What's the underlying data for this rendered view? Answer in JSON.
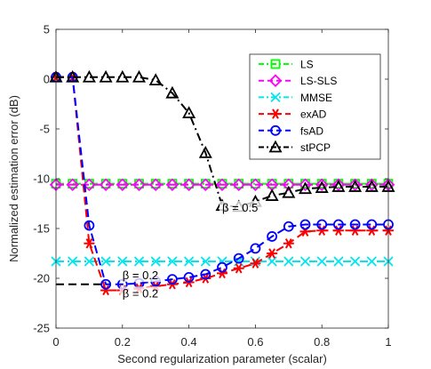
{
  "chart_data": {
    "type": "line",
    "xlabel": "Second regularization parameter (scalar)",
    "ylabel": "Normalized estimation error (dB)",
    "xlim": [
      0,
      1
    ],
    "ylim": [
      -25,
      5
    ],
    "xticks": [
      0,
      0.2,
      0.4,
      0.6,
      0.8,
      1
    ],
    "xtick_labels": [
      "0",
      "0.2",
      "0.4",
      "0.6",
      "0.8",
      "1"
    ],
    "yticks": [
      5,
      0,
      -5,
      -10,
      -15,
      -20,
      -25
    ],
    "ytick_labels": [
      "5",
      "0",
      "-5",
      "-10",
      "-15",
      "-20",
      "-25"
    ],
    "grid": false,
    "legend_position": "top-right",
    "series": [
      {
        "name": "LS",
        "color": "#00ff00",
        "dash": "dashdot",
        "marker": "square",
        "x": [
          0,
          0.05,
          0.1,
          0.15,
          0.2,
          0.25,
          0.3,
          0.35,
          0.4,
          0.45,
          0.5,
          0.55,
          0.6,
          0.65,
          0.7,
          0.75,
          0.8,
          0.85,
          0.9,
          0.95,
          1
        ],
        "y": [
          -10.5,
          -10.5,
          -10.5,
          -10.5,
          -10.5,
          -10.5,
          -10.5,
          -10.5,
          -10.5,
          -10.5,
          -10.5,
          -10.5,
          -10.5,
          -10.5,
          -10.5,
          -10.5,
          -10.5,
          -10.5,
          -10.5,
          -10.5,
          -10.5
        ]
      },
      {
        "name": "LS-SLS",
        "color": "#ff00ff",
        "dash": "dashed",
        "marker": "diamond",
        "x": [
          0,
          0.05,
          0.1,
          0.15,
          0.2,
          0.25,
          0.3,
          0.35,
          0.4,
          0.45,
          0.5,
          0.55,
          0.6,
          0.65,
          0.7,
          0.75,
          0.8,
          0.85,
          0.9,
          0.95,
          1
        ],
        "y": [
          -10.6,
          -10.6,
          -10.6,
          -10.6,
          -10.6,
          -10.6,
          -10.6,
          -10.6,
          -10.6,
          -10.6,
          -10.6,
          -10.6,
          -10.6,
          -10.6,
          -10.6,
          -10.6,
          -10.6,
          -10.6,
          -10.6,
          -10.6,
          -10.6
        ]
      },
      {
        "name": "MMSE",
        "color": "#00e5ee",
        "dash": "dashdot",
        "marker": "x",
        "x": [
          0,
          0.05,
          0.1,
          0.15,
          0.2,
          0.25,
          0.3,
          0.35,
          0.4,
          0.45,
          0.5,
          0.55,
          0.6,
          0.65,
          0.7,
          0.75,
          0.8,
          0.85,
          0.9,
          0.95,
          1
        ],
        "y": [
          -18.3,
          -18.3,
          -18.3,
          -18.3,
          -18.3,
          -18.3,
          -18.3,
          -18.3,
          -18.3,
          -18.3,
          -18.3,
          -18.3,
          -18.3,
          -18.3,
          -18.3,
          -18.3,
          -18.3,
          -18.3,
          -18.3,
          -18.3,
          -18.3
        ]
      },
      {
        "name": "exAD",
        "color": "#ff0000",
        "dash": "dashed",
        "marker": "asterisk",
        "x": [
          0,
          0.05,
          0.1,
          0.15,
          0.2,
          0.25,
          0.3,
          0.35,
          0.4,
          0.45,
          0.5,
          0.55,
          0.6,
          0.65,
          0.7,
          0.75,
          0.8,
          0.85,
          0.9,
          0.95,
          1
        ],
        "y": [
          0.2,
          0.2,
          -16.5,
          -21.2,
          -21.2,
          -21.0,
          -20.8,
          -20.6,
          -20.4,
          -20.0,
          -19.5,
          -19.0,
          -18.5,
          -17.5,
          -16.5,
          -15.3,
          -15.2,
          -15.2,
          -15.2,
          -15.2,
          -15.2
        ]
      },
      {
        "name": "fsAD",
        "color": "#0000ff",
        "dash": "dashed",
        "marker": "circle",
        "x": [
          0,
          0.05,
          0.1,
          0.15,
          0.2,
          0.25,
          0.3,
          0.35,
          0.4,
          0.45,
          0.5,
          0.55,
          0.6,
          0.65,
          0.7,
          0.75,
          0.8,
          0.85,
          0.9,
          0.95,
          1
        ],
        "y": [
          0.2,
          0.2,
          -14.7,
          -20.6,
          -20.6,
          -20.5,
          -20.3,
          -20.1,
          -19.9,
          -19.6,
          -18.9,
          -18.0,
          -17.0,
          -15.8,
          -14.8,
          -14.6,
          -14.6,
          -14.6,
          -14.6,
          -14.6,
          -14.6
        ]
      },
      {
        "name": "stPCP",
        "color": "#000000",
        "dash": "dashdot",
        "marker": "triangle",
        "x": [
          0,
          0.05,
          0.1,
          0.15,
          0.2,
          0.25,
          0.3,
          0.35,
          0.4,
          0.45,
          0.5,
          0.55,
          0.6,
          0.65,
          0.7,
          0.75,
          0.8,
          0.85,
          0.9,
          0.95,
          1
        ],
        "y": [
          0.2,
          0.2,
          0.2,
          0.2,
          0.2,
          0.2,
          -0.1,
          -1.4,
          -3.4,
          -7.4,
          -12.7,
          -12.8,
          -12.3,
          -11.7,
          -11.4,
          -11.0,
          -10.9,
          -10.8,
          -10.8,
          -10.8,
          -10.8
        ]
      }
    ],
    "reference_line": {
      "color": "#000000",
      "dash": "dashed",
      "x": [
        0,
        0.15
      ],
      "y": [
        -20.6,
        -20.6
      ]
    },
    "annotations": [
      {
        "text": "β = 0.5",
        "x": 0.5,
        "y": -13.3
      },
      {
        "text": "β = 0.2",
        "x": 0.2,
        "y": -20.1
      },
      {
        "text": "β = 0.2",
        "x": 0.2,
        "y": -21.9
      }
    ]
  }
}
